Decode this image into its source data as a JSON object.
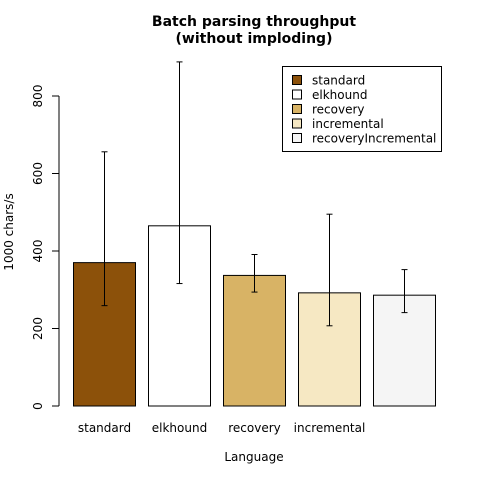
{
  "chart_data": {
    "type": "bar",
    "title_lines": [
      "Batch parsing throughput",
      "(without imploding)"
    ],
    "xlabel": "Language",
    "ylabel": "1000 chars/s",
    "ylim": [
      0,
      900
    ],
    "yticks": [
      0,
      200,
      400,
      600,
      800
    ],
    "grid": false,
    "legend_position": "top-right",
    "categories": [
      "standard",
      "elkhound",
      "recovery",
      "incremental",
      "recoveryIncremental"
    ],
    "x_tick_labels": [
      "standard",
      "elkhound",
      "recovery",
      "incremental",
      ""
    ],
    "values": [
      370,
      465,
      337,
      292,
      286
    ],
    "error_low": [
      259,
      316,
      294,
      207,
      241
    ],
    "error_high": [
      656,
      888,
      391,
      495,
      352
    ],
    "colors": [
      "#8c510a",
      "#ffffff",
      "#d8b365",
      "#f6e8c3",
      "#f5f5f5"
    ]
  }
}
